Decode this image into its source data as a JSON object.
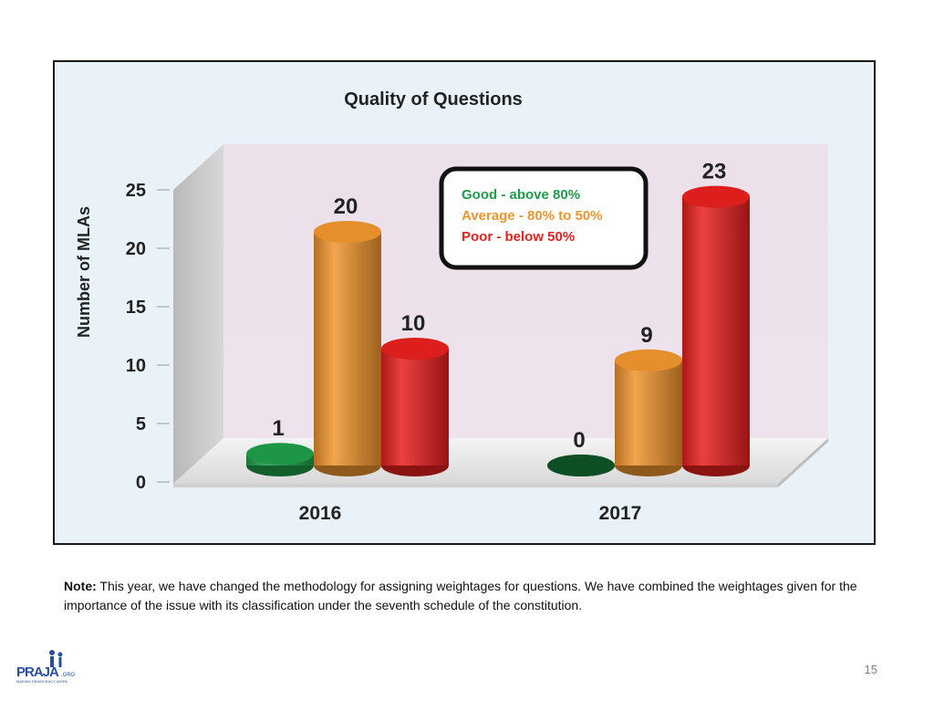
{
  "chart_data": {
    "type": "bar",
    "title": "Quality of Questions",
    "ylabel": "Number of MLAs",
    "xlabel": "",
    "categories": [
      "2016",
      "2017"
    ],
    "series": [
      {
        "name": "Good - above 80%",
        "color": "#1e9e4a",
        "values": [
          1,
          0
        ]
      },
      {
        "name": "Average - 80% to 50%",
        "color": "#f0952e",
        "values": [
          20,
          9
        ]
      },
      {
        "name": "Poor  - below 50%",
        "color": "#e8201e",
        "values": [
          10,
          23
        ]
      }
    ],
    "ylim": [
      0,
      25
    ],
    "yticks": [
      0,
      5,
      10,
      15,
      20,
      25
    ],
    "legend_placement": "top-center",
    "style": "3d-cylinder"
  },
  "note": {
    "label": "Note:",
    "text": " This year, we have changed the methodology for assigning weightages for questions. We have combined the weightages given for the importance of the issue with its classification under the seventh schedule of the constitution."
  },
  "logo": {
    "name": "PRAJA",
    "suffix": ".ORG",
    "tagline": "MAKING DEMOCRACY WORK"
  },
  "page_number": "15"
}
